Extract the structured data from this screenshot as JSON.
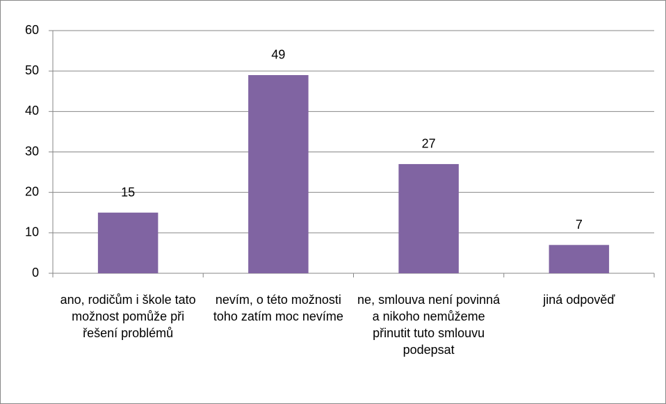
{
  "chart_data": {
    "type": "bar",
    "categories": [
      "ano, rodičům i škole tato možnost pomůže při řešení problémů",
      "nevím, o této možnosti toho zatím moc nevíme",
      "ne, smlouva není povinná a nikoho nemůžeme přinutit tuto smlouvu podepsat",
      "jiná odpověď"
    ],
    "values": [
      15,
      49,
      27,
      7
    ],
    "color": "#8064a2",
    "ylim": [
      0,
      60
    ],
    "yticks": [
      0,
      10,
      20,
      30,
      40,
      50,
      60
    ],
    "grid": true
  }
}
